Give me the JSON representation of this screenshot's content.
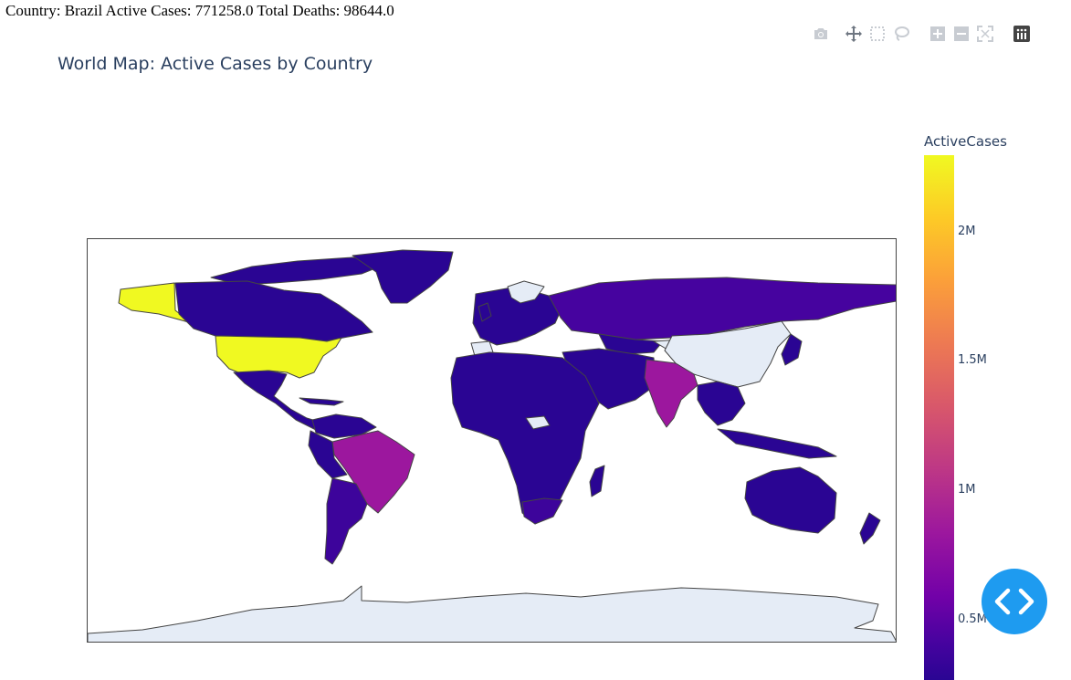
{
  "info": {
    "text": "Country: Brazil Active Cases: 771258.0 Total Deaths: 98644.0"
  },
  "modebar": {
    "buttons": [
      "camera-icon",
      "pan-icon",
      "box-select-icon",
      "lasso-icon",
      "zoom-in-icon",
      "zoom-out-icon",
      "autoscale-icon",
      "plotly-logo-icon"
    ]
  },
  "title": "World Map: Active Cases by Country",
  "colorbar": {
    "title": "ActiveCases",
    "ticks": [
      "2M",
      "1.5M",
      "1M",
      "0.5M"
    ],
    "colorscale": [
      "#f0f921",
      "#fdca26",
      "#fb9f3a",
      "#ed7953",
      "#d8576b",
      "#bd3786",
      "#9c179e",
      "#7201a8",
      "#46039f",
      "#2a0593"
    ]
  },
  "map": {
    "colors": {
      "low": "#2a0593",
      "us": "#f0f921",
      "brazil": "#9c179e",
      "india": "#9c179e",
      "russia": "#46039f",
      "mid_low": "#3d049b",
      "no_data": "#e5ecf6",
      "border": "#444444"
    }
  },
  "fab": {
    "icon": "code-icon"
  }
}
